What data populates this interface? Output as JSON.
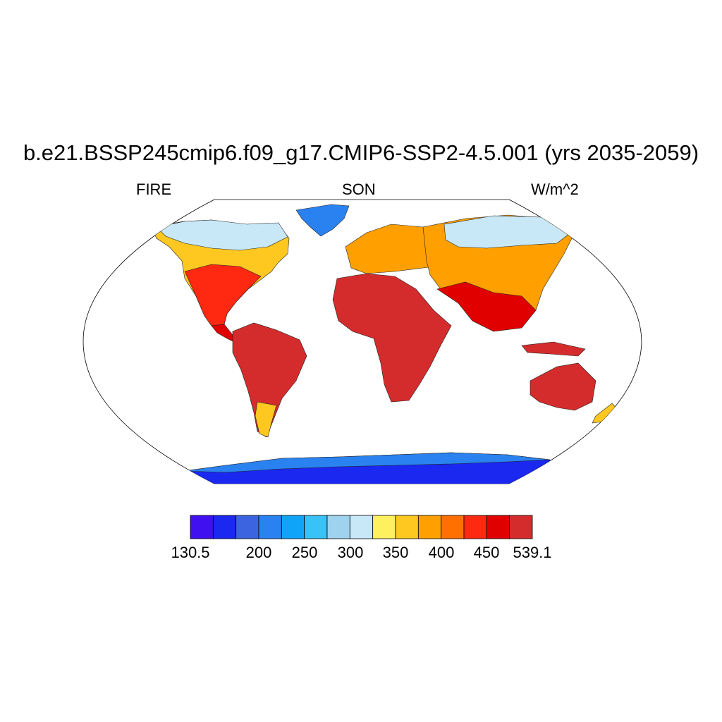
{
  "title": "b.e21.BSSP245cmip6.f09_g17.CMIP6-SSP2-4.5.001 (yrs 2035-2059)",
  "subtitle_left": "FIRE",
  "subtitle_center": "SON",
  "subtitle_right": "W/m^2",
  "colorbar": {
    "colors": [
      "#4010f0",
      "#1a28f0",
      "#3c64e0",
      "#2a82f0",
      "#10a4f8",
      "#38c2f8",
      "#9ed2ee",
      "#c8e8f8",
      "#fff060",
      "#ffc820",
      "#ffa000",
      "#ff7000",
      "#ff2810",
      "#e00000",
      "#d42c2c"
    ],
    "labels": [
      {
        "text": "130.5",
        "index": 0
      },
      {
        "text": "200",
        "index": 2
      },
      {
        "text": "250",
        "index": 3
      },
      {
        "text": "300",
        "index": 4
      },
      {
        "text": "350",
        "index": 5
      },
      {
        "text": "400",
        "index": 6
      },
      {
        "text": "450",
        "index": 7
      },
      {
        "text": "539.1",
        "index": 8
      }
    ]
  }
}
